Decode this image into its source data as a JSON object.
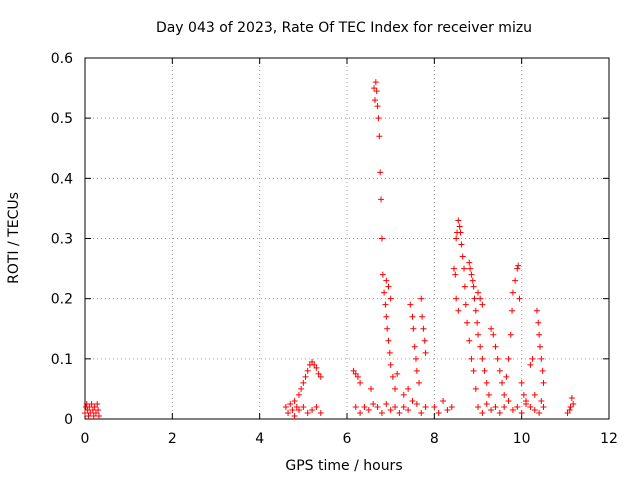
{
  "chart_data": {
    "type": "scatter",
    "title": "Day 043 of 2023, Rate Of TEC Index for receiver mizu",
    "xlabel": "GPS time / hours",
    "ylabel": "ROTI / TECUs",
    "xlim": [
      0,
      12
    ],
    "ylim": [
      0,
      0.6
    ],
    "xticks": [
      0,
      2,
      4,
      6,
      8,
      10,
      12
    ],
    "yticks": [
      0,
      0.1,
      0.2,
      0.3,
      0.4,
      0.5,
      0.6
    ],
    "xtick_labels": [
      "0",
      "2",
      "4",
      "6",
      "8",
      "10",
      "12"
    ],
    "ytick_labels": [
      "0",
      "0.1",
      "0.2",
      "0.3",
      "0.4",
      "0.5",
      "0.6"
    ],
    "grid": true,
    "marker": "+",
    "color": "#ff0000",
    "series": [
      {
        "name": "ROTI",
        "points": [
          [
            0.0,
            0.01
          ],
          [
            0.02,
            0.02
          ],
          [
            0.04,
            0.025
          ],
          [
            0.06,
            0.015
          ],
          [
            0.08,
            0.005
          ],
          [
            0.1,
            0.02
          ],
          [
            0.12,
            0.01
          ],
          [
            0.15,
            0.025
          ],
          [
            0.18,
            0.015
          ],
          [
            0.2,
            0.005
          ],
          [
            0.22,
            0.02
          ],
          [
            0.25,
            0.01
          ],
          [
            0.28,
            0.025
          ],
          [
            0.3,
            0.015
          ],
          [
            0.32,
            0.005
          ],
          [
            4.6,
            0.02
          ],
          [
            4.65,
            0.01
          ],
          [
            4.7,
            0.025
          ],
          [
            4.75,
            0.015
          ],
          [
            4.8,
            0.03
          ],
          [
            4.85,
            0.02
          ],
          [
            4.9,
            0.04
          ],
          [
            4.95,
            0.05
          ],
          [
            5.0,
            0.06
          ],
          [
            5.05,
            0.07
          ],
          [
            5.1,
            0.08
          ],
          [
            5.15,
            0.09
          ],
          [
            5.2,
            0.095
          ],
          [
            5.25,
            0.09
          ],
          [
            5.3,
            0.085
          ],
          [
            5.35,
            0.075
          ],
          [
            5.4,
            0.07
          ],
          [
            5.0,
            0.02
          ],
          [
            5.1,
            0.01
          ],
          [
            5.2,
            0.015
          ],
          [
            5.3,
            0.02
          ],
          [
            5.4,
            0.01
          ],
          [
            4.9,
            0.015
          ],
          [
            4.8,
            0.005
          ],
          [
            6.15,
            0.08
          ],
          [
            6.2,
            0.075
          ],
          [
            6.25,
            0.07
          ],
          [
            6.3,
            0.06
          ],
          [
            6.2,
            0.02
          ],
          [
            6.3,
            0.01
          ],
          [
            6.4,
            0.02
          ],
          [
            6.5,
            0.015
          ],
          [
            6.55,
            0.05
          ],
          [
            6.6,
            0.025
          ],
          [
            6.62,
            0.55
          ],
          [
            6.64,
            0.53
          ],
          [
            6.66,
            0.56
          ],
          [
            6.68,
            0.545
          ],
          [
            6.7,
            0.52
          ],
          [
            6.72,
            0.5
          ],
          [
            6.74,
            0.47
          ],
          [
            6.76,
            0.41
          ],
          [
            6.78,
            0.365
          ],
          [
            6.8,
            0.3
          ],
          [
            6.82,
            0.24
          ],
          [
            6.85,
            0.21
          ],
          [
            6.88,
            0.19
          ],
          [
            6.9,
            0.17
          ],
          [
            6.92,
            0.15
          ],
          [
            6.95,
            0.13
          ],
          [
            6.98,
            0.11
          ],
          [
            7.0,
            0.09
          ],
          [
            6.9,
            0.23
          ],
          [
            6.95,
            0.22
          ],
          [
            7.0,
            0.2
          ],
          [
            7.05,
            0.07
          ],
          [
            7.1,
            0.05
          ],
          [
            7.15,
            0.075
          ],
          [
            6.7,
            0.02
          ],
          [
            6.8,
            0.01
          ],
          [
            6.9,
            0.025
          ],
          [
            7.0,
            0.015
          ],
          [
            7.1,
            0.02
          ],
          [
            7.2,
            0.01
          ],
          [
            7.3,
            0.02
          ],
          [
            7.4,
            0.015
          ],
          [
            7.5,
            0.03
          ],
          [
            7.6,
            0.025
          ],
          [
            7.7,
            0.01
          ],
          [
            7.8,
            0.02
          ],
          [
            7.45,
            0.19
          ],
          [
            7.5,
            0.17
          ],
          [
            7.52,
            0.15
          ],
          [
            7.55,
            0.12
          ],
          [
            7.58,
            0.1
          ],
          [
            7.6,
            0.08
          ],
          [
            7.65,
            0.06
          ],
          [
            7.4,
            0.05
          ],
          [
            7.3,
            0.04
          ],
          [
            7.7,
            0.2
          ],
          [
            7.72,
            0.17
          ],
          [
            7.75,
            0.15
          ],
          [
            7.78,
            0.13
          ],
          [
            7.8,
            0.11
          ],
          [
            8.0,
            0.02
          ],
          [
            8.1,
            0.01
          ],
          [
            8.2,
            0.03
          ],
          [
            8.3,
            0.015
          ],
          [
            8.4,
            0.02
          ],
          [
            8.45,
            0.25
          ],
          [
            8.48,
            0.24
          ],
          [
            8.5,
            0.3
          ],
          [
            8.52,
            0.31
          ],
          [
            8.55,
            0.33
          ],
          [
            8.58,
            0.32
          ],
          [
            8.6,
            0.31
          ],
          [
            8.62,
            0.29
          ],
          [
            8.65,
            0.27
          ],
          [
            8.68,
            0.25
          ],
          [
            8.7,
            0.22
          ],
          [
            8.72,
            0.19
          ],
          [
            8.75,
            0.16
          ],
          [
            8.8,
            0.13
          ],
          [
            8.85,
            0.1
          ],
          [
            8.9,
            0.08
          ],
          [
            8.95,
            0.05
          ],
          [
            8.5,
            0.2
          ],
          [
            8.55,
            0.18
          ],
          [
            8.8,
            0.26
          ],
          [
            8.82,
            0.25
          ],
          [
            8.85,
            0.24
          ],
          [
            8.88,
            0.23
          ],
          [
            8.9,
            0.22
          ],
          [
            8.92,
            0.2
          ],
          [
            8.95,
            0.18
          ],
          [
            8.98,
            0.16
          ],
          [
            9.0,
            0.14
          ],
          [
            9.05,
            0.12
          ],
          [
            9.1,
            0.1
          ],
          [
            9.15,
            0.08
          ],
          [
            9.2,
            0.06
          ],
          [
            9.25,
            0.04
          ],
          [
            9.0,
            0.21
          ],
          [
            9.05,
            0.2
          ],
          [
            9.1,
            0.19
          ],
          [
            9.3,
            0.15
          ],
          [
            9.35,
            0.14
          ],
          [
            9.4,
            0.12
          ],
          [
            9.45,
            0.1
          ],
          [
            9.5,
            0.08
          ],
          [
            9.55,
            0.06
          ],
          [
            9.6,
            0.04
          ],
          [
            9.65,
            0.07
          ],
          [
            9.7,
            0.1
          ],
          [
            9.75,
            0.14
          ],
          [
            9.78,
            0.18
          ],
          [
            9.8,
            0.21
          ],
          [
            9.85,
            0.23
          ],
          [
            9.9,
            0.25
          ],
          [
            9.92,
            0.255
          ],
          [
            9.95,
            0.2
          ],
          [
            10.0,
            0.06
          ],
          [
            10.05,
            0.04
          ],
          [
            10.1,
            0.03
          ],
          [
            10.2,
            0.09
          ],
          [
            10.25,
            0.1
          ],
          [
            10.3,
            0.04
          ],
          [
            10.35,
            0.18
          ],
          [
            10.38,
            0.16
          ],
          [
            10.4,
            0.14
          ],
          [
            10.42,
            0.12
          ],
          [
            10.45,
            0.1
          ],
          [
            10.48,
            0.08
          ],
          [
            10.5,
            0.06
          ],
          [
            10.45,
            0.03
          ],
          [
            9.0,
            0.02
          ],
          [
            9.1,
            0.01
          ],
          [
            9.2,
            0.025
          ],
          [
            9.3,
            0.015
          ],
          [
            9.4,
            0.02
          ],
          [
            9.5,
            0.01
          ],
          [
            9.6,
            0.02
          ],
          [
            9.7,
            0.03
          ],
          [
            9.8,
            0.015
          ],
          [
            9.9,
            0.02
          ],
          [
            10.0,
            0.01
          ],
          [
            10.1,
            0.025
          ],
          [
            10.2,
            0.02
          ],
          [
            10.3,
            0.015
          ],
          [
            10.4,
            0.01
          ],
          [
            10.5,
            0.02
          ],
          [
            11.05,
            0.01
          ],
          [
            11.1,
            0.015
          ],
          [
            11.12,
            0.02
          ],
          [
            11.15,
            0.035
          ],
          [
            11.18,
            0.025
          ]
        ]
      }
    ]
  }
}
